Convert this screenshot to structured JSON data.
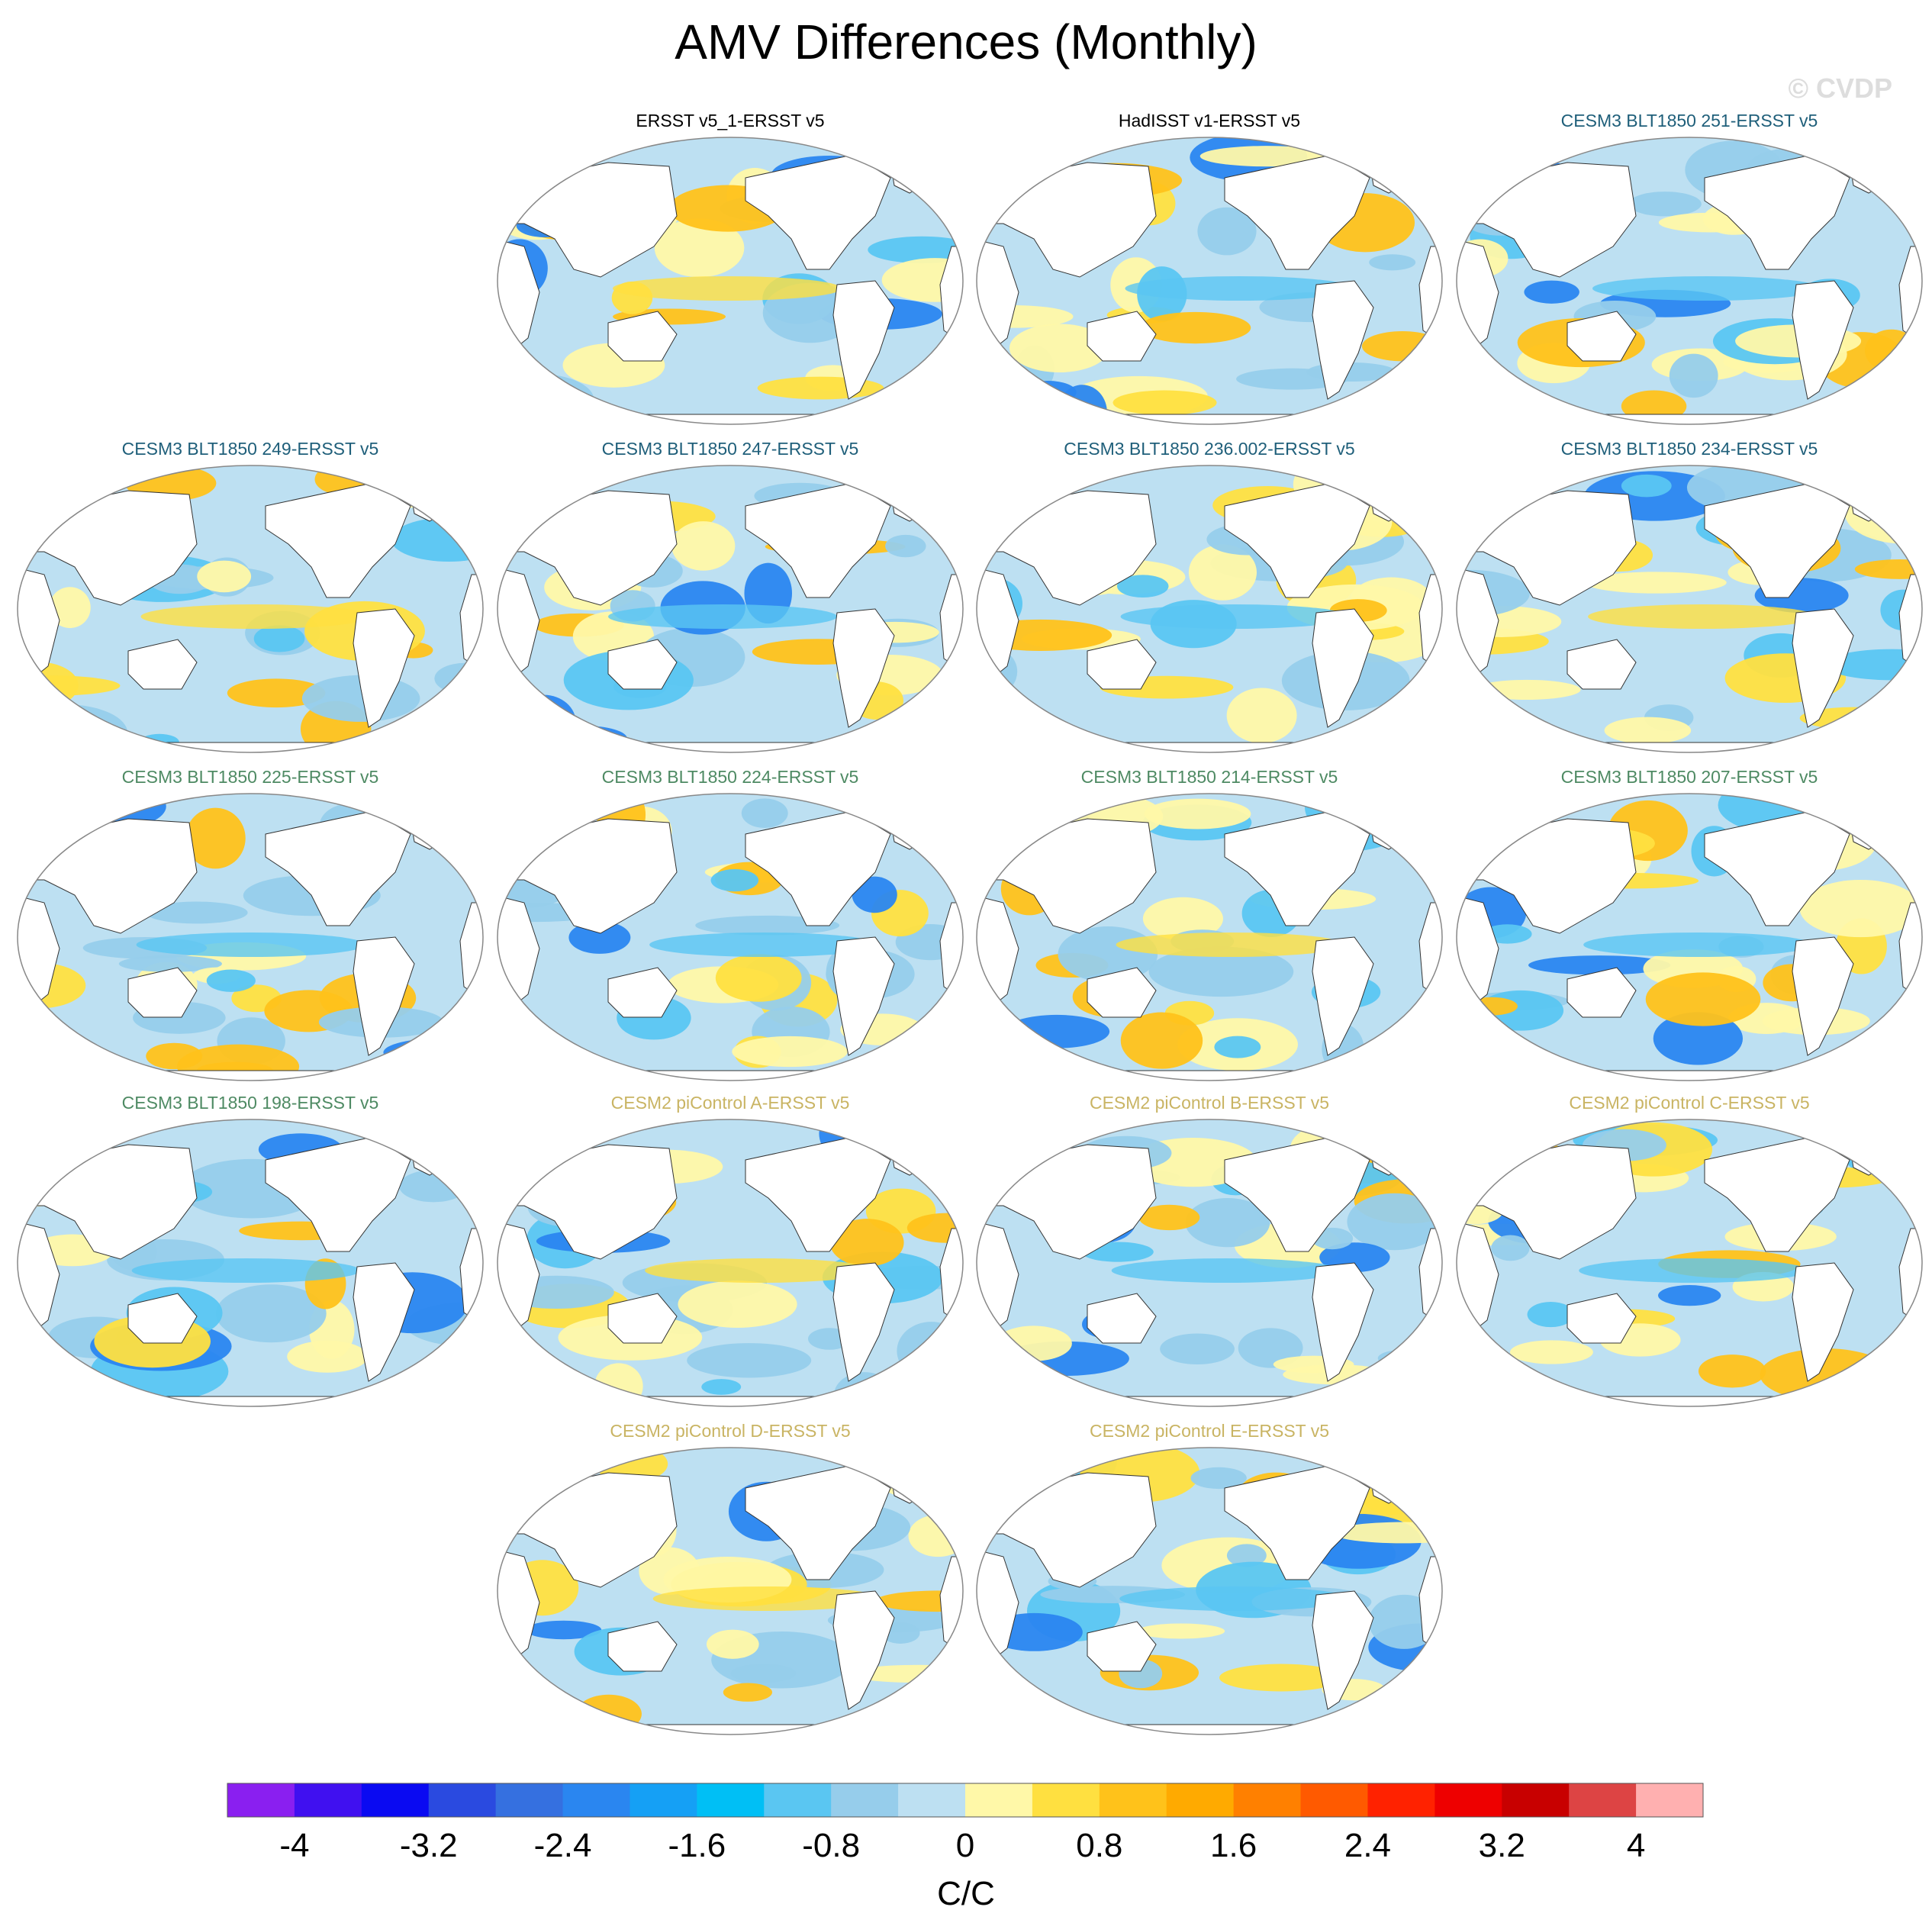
{
  "title": "AMV Differences (Monthly)",
  "watermark": "© CVDP",
  "panels": [
    {
      "label": "ERSST v5_1-ERSST v5",
      "color": "#000000"
    },
    {
      "label": "HadISST v1-ERSST v5",
      "color": "#000000"
    },
    {
      "label": "CESM3 BLT1850 251-ERSST v5",
      "color": "#1f5f7a"
    },
    {
      "label": "CESM3 BLT1850 249-ERSST v5",
      "color": "#1f5f7a"
    },
    {
      "label": "CESM3 BLT1850 247-ERSST v5",
      "color": "#1f5f7a"
    },
    {
      "label": "CESM3 BLT1850 236.002-ERSST v5",
      "color": "#1f5f7a"
    },
    {
      "label": "CESM3 BLT1850 234-ERSST v5",
      "color": "#1f5f7a"
    },
    {
      "label": "CESM3 BLT1850 225-ERSST v5",
      "color": "#4e8a63"
    },
    {
      "label": "CESM3 BLT1850 224-ERSST v5",
      "color": "#4e8a63"
    },
    {
      "label": "CESM3 BLT1850 214-ERSST v5",
      "color": "#4e8a63"
    },
    {
      "label": "CESM3 BLT1850 207-ERSST v5",
      "color": "#4e8a63"
    },
    {
      "label": "CESM3 BLT1850 198-ERSST v5",
      "color": "#4e8a63"
    },
    {
      "label": "CESM2 piControl A-ERSST v5",
      "color": "#c9b463"
    },
    {
      "label": "CESM2 piControl B-ERSST v5",
      "color": "#c9b463"
    },
    {
      "label": "CESM2 piControl C-ERSST v5",
      "color": "#c9b463"
    },
    {
      "label": "CESM2 piControl D-ERSST v5",
      "color": "#c9b463"
    },
    {
      "label": "CESM2 piControl E-ERSST v5",
      "color": "#c9b463"
    }
  ],
  "chart_data": {
    "type": "heatmap",
    "colorbar": {
      "label": "C/C",
      "tick_labels": [
        "-4",
        "-3.2",
        "-2.4",
        "-1.6",
        "-0.8",
        "0",
        "0.8",
        "1.6",
        "2.4",
        "3.2",
        "4"
      ],
      "ticks": [
        -4,
        -3.2,
        -2.4,
        -1.6,
        -0.8,
        0,
        0.8,
        1.6,
        2.4,
        3.2,
        4
      ],
      "colors": [
        "#8a1ff0",
        "#4010f0",
        "#0a0af2",
        "#2a4ae0",
        "#3570e0",
        "#2a86f0",
        "#15a0f5",
        "#00bff5",
        "#5ac6f2",
        "#96cdeb",
        "#bde0f2",
        "#fff8a8",
        "#ffe040",
        "#ffc21a",
        "#ffaa00",
        "#ff8000",
        "#ff5a00",
        "#ff2200",
        "#ee0000",
        "#c80000",
        "#dd4444",
        "#ffb0b0"
      ]
    }
  }
}
